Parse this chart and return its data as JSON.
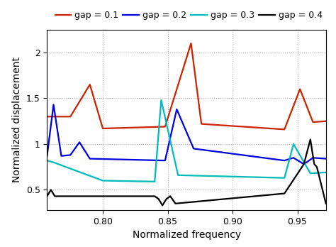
{
  "title": "",
  "xlabel": "Normalized frequency",
  "ylabel": "Normalized displacement",
  "xlim": [
    0.757,
    0.972
  ],
  "ylim": [
    0.28,
    2.25
  ],
  "xticks": [
    0.8,
    0.85,
    0.9,
    0.95
  ],
  "yticks": [
    0.5,
    1.0,
    1.5,
    2.0
  ],
  "legend_labels": [
    "gap = 0.1",
    "gap = 0.2",
    "gap = 0.3",
    "gap = 0.4"
  ],
  "colors": [
    "#cc2200",
    "#0000dd",
    "#00bbbb",
    "#000000"
  ],
  "linewidth": 1.6,
  "background_color": "#ffffff",
  "grid_color": "#aaaaaa",
  "grid_style": ":"
}
